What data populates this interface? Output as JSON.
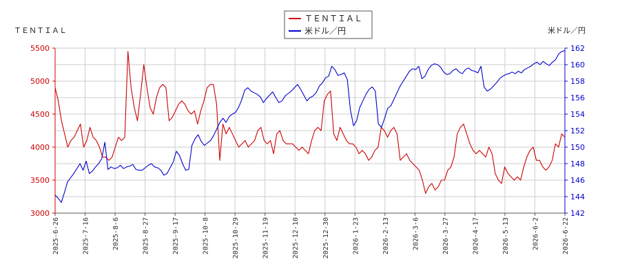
{
  "chart_data": {
    "type": "line",
    "left_axis_title": "ＴＥＮＴＩＡＬ",
    "right_axis_title": "米ドル／円",
    "ylim_left": [
      3000,
      5500
    ],
    "ylim_right": [
      142,
      162
    ],
    "yticks_left": [
      "3000",
      "3500",
      "4000",
      "4500",
      "5000",
      "5500"
    ],
    "yticks_right": [
      "142",
      "144",
      "146",
      "148",
      "150",
      "152",
      "154",
      "156",
      "158",
      "160",
      "162"
    ],
    "xticks": [
      "2025-6-26",
      "2025-7-16",
      "2025-8-6",
      "2025-8-27",
      "2025-9-17",
      "2025-10-8",
      "2025-10-29",
      "2025-11-19",
      "2025-12-10",
      "2025-12-30",
      "2026-1-23",
      "2026-2-13",
      "2026-3-6",
      "2026-3-27",
      "2026-4-17",
      "2026-5-13",
      "2026-6-2",
      "2026-6-22"
    ],
    "grid": true,
    "legend_position": "top-center",
    "colors": {
      "left": "#cc0000",
      "right": "#0000cc"
    },
    "series": [
      {
        "name": "ＴＥＮＴＩＡＬ",
        "axis": "left",
        "values": [
          4900,
          4700,
          4400,
          4200,
          4000,
          4100,
          4150,
          4250,
          4350,
          4000,
          4100,
          4300,
          4150,
          4100,
          4000,
          3850,
          3850,
          3800,
          3850,
          4000,
          4150,
          4100,
          4150,
          5450,
          4900,
          4600,
          4400,
          4800,
          5250,
          4900,
          4600,
          4500,
          4750,
          4900,
          4950,
          4900,
          4400,
          4450,
          4550,
          4650,
          4700,
          4650,
          4550,
          4500,
          4550,
          4350,
          4550,
          4700,
          4900,
          4950,
          4950,
          4650,
          3800,
          4350,
          4200,
          4300,
          4200,
          4100,
          4000,
          4050,
          4100,
          4000,
          4050,
          4100,
          4250,
          4300,
          4100,
          4050,
          4100,
          3900,
          4200,
          4250,
          4100,
          4050,
          4050,
          4050,
          4000,
          3950,
          4000,
          3950,
          3900,
          4100,
          4250,
          4300,
          4250,
          4700,
          4800,
          4850,
          4200,
          4100,
          4300,
          4200,
          4100,
          4050,
          4050,
          4000,
          3900,
          3950,
          3900,
          3800,
          3850,
          3950,
          4000,
          4300,
          4250,
          4150,
          4250,
          4300,
          4200,
          3800,
          3850,
          3900,
          3800,
          3750,
          3700,
          3650,
          3500,
          3300,
          3400,
          3450,
          3350,
          3400,
          3500,
          3500,
          3650,
          3700,
          3850,
          4200,
          4300,
          4350,
          4200,
          4050,
          3950,
          3900,
          3950,
          3900,
          3850,
          4000,
          3900,
          3600,
          3500,
          3450,
          3700,
          3600,
          3550,
          3500,
          3550,
          3500,
          3700,
          3850,
          3950,
          4000,
          3800,
          3800,
          3700,
          3650,
          3700,
          3800,
          4050,
          4000,
          4200,
          4150
        ]
      },
      {
        "name": "米ドル／円",
        "axis": "right",
        "values": [
          144.2,
          143.8,
          143.3,
          144.5,
          145.8,
          146.3,
          146.8,
          147.4,
          148.0,
          147.2,
          148.3,
          146.8,
          147.1,
          147.6,
          148.0,
          148.6,
          150.6,
          147.3,
          147.6,
          147.4,
          147.5,
          147.8,
          147.4,
          147.6,
          147.7,
          147.9,
          147.3,
          147.2,
          147.2,
          147.5,
          147.8,
          148.0,
          147.6,
          147.5,
          147.2,
          146.6,
          146.8,
          147.5,
          148.2,
          149.5,
          149.0,
          148.0,
          147.2,
          147.3,
          150.2,
          151.0,
          151.5,
          150.7,
          150.2,
          150.5,
          150.8,
          151.4,
          152.2,
          153.0,
          153.5,
          153.0,
          153.7,
          154.0,
          154.2,
          154.8,
          155.7,
          156.9,
          157.2,
          156.8,
          156.6,
          156.4,
          156.1,
          155.4,
          155.9,
          156.3,
          156.7,
          156.0,
          155.4,
          155.6,
          156.2,
          156.5,
          156.8,
          157.2,
          157.6,
          157.0,
          156.3,
          155.6,
          156.0,
          156.2,
          156.6,
          157.4,
          157.8,
          158.4,
          158.6,
          159.8,
          159.4,
          158.7,
          158.8,
          159.0,
          158.2,
          154.5,
          152.6,
          153.2,
          154.8,
          155.6,
          156.4,
          157.0,
          157.3,
          156.8,
          152.8,
          152.4,
          153.5,
          154.7,
          155.0,
          155.8,
          156.6,
          157.4,
          158.0,
          158.6,
          159.2,
          159.5,
          159.4,
          159.8,
          158.3,
          158.6,
          159.4,
          159.9,
          160.1,
          160.0,
          159.7,
          159.1,
          158.8,
          158.9,
          159.3,
          159.5,
          159.1,
          158.9,
          159.4,
          159.6,
          159.3,
          159.2,
          159.0,
          159.8,
          157.3,
          156.8,
          157.0,
          157.4,
          157.8,
          158.3,
          158.6,
          158.8,
          158.9,
          159.1,
          158.9,
          159.2,
          159.0,
          159.4,
          159.6,
          159.8,
          160.1,
          160.3,
          160.0,
          160.4,
          160.1,
          159.9,
          160.3,
          160.6,
          161.3,
          161.6,
          161.7
        ]
      }
    ]
  }
}
